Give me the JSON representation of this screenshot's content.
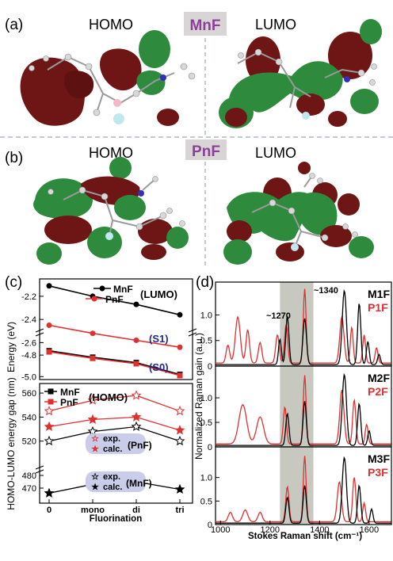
{
  "figure": {
    "panel_a": {
      "label": "(a)",
      "left_title": "HOMO",
      "right_title": "LUMO",
      "molecule": "MnF",
      "molecule_badge_color": "#d9d4d6",
      "molecule_text_color": "#8b3f96"
    },
    "panel_b": {
      "label": "(b)",
      "left_title": "HOMO",
      "right_title": "LUMO",
      "molecule": "PnF",
      "molecule_badge_color": "#d9d4d6",
      "molecule_text_color": "#8b3f96"
    },
    "orbital_colors": {
      "positive": "#2e8b3e",
      "negative": "#6e1515"
    }
  },
  "chart_data": [
    {
      "id": "c",
      "type": "line",
      "label": "(c)",
      "x_categories": [
        "0",
        "mono",
        "di",
        "tri"
      ],
      "xlabel": "Fluorination",
      "upper": {
        "ylabel": "Energy (eV)",
        "ylim": [
          -2.7,
          -2.05
        ],
        "yticks": [
          -2.2,
          -2.4,
          -2.6
        ],
        "break_ticks": [
          -4.8,
          -5.0
        ],
        "state_labels": [
          "(S1)",
          "(S0)"
        ],
        "state_label_color": "#1f2a8a",
        "series": [
          {
            "name": "MnF",
            "tag": "(LUMO)",
            "color": "#000000",
            "marker": "circle",
            "values": [
              -2.11,
              -2.2,
              -2.27,
              -2.36
            ]
          },
          {
            "name": "PnF",
            "color": "#e03030",
            "marker": "circle",
            "values": [
              -2.45,
              -2.52,
              -2.58,
              -2.64
            ]
          },
          {
            "name": "MnF",
            "tag": "(HOMO)",
            "color": "#000000",
            "marker": "square",
            "values": [
              -4.76,
              -4.82,
              -4.87,
              -4.98
            ]
          },
          {
            "name": "PnF",
            "color": "#e03030",
            "marker": "square",
            "values": [
              -4.77,
              -4.83,
              -4.88,
              -4.99
            ]
          }
        ]
      },
      "lower": {
        "ylabel": "HOMO-LUMO energy gap (nm)",
        "ylim": [
          460,
          564
        ],
        "yticks": [
          470,
          480,
          520,
          540,
          560
        ],
        "legend_pnf": {
          "exp": "exp.",
          "calc": "calc.",
          "name": "(PnF)"
        },
        "legend_mnf": {
          "exp": "exp.",
          "calc": "calc.",
          "name": "(MnF)"
        },
        "legend_bg": "#c9cdea",
        "series": [
          {
            "name": "PnF exp.",
            "color": "#e03030",
            "marker": "star-open",
            "values": [
              545,
              554,
              558,
              545
            ]
          },
          {
            "name": "PnF calc.",
            "color": "#e03030",
            "marker": "star-filled",
            "values": [
              532,
              538,
              540,
              529
            ]
          },
          {
            "name": "MnF exp.",
            "color": "#000000",
            "marker": "star-open",
            "values": [
              520,
              528,
              532,
              520
            ]
          },
          {
            "name": "MnF calc.",
            "color": "#000000",
            "marker": "star-filled",
            "values": [
              466,
              473,
              475,
              469
            ]
          }
        ]
      }
    },
    {
      "id": "d",
      "type": "line",
      "label": "(d)",
      "xlabel": "Stokes Raman shift (cm⁻¹)",
      "ylabel": "Normalized Raman gain (a.u.)",
      "xlim": [
        980,
        1690
      ],
      "xticks": [
        1000,
        1200,
        1400,
        1600
      ],
      "yticks": [
        0,
        0.5,
        1.0
      ],
      "highlight_band": [
        1240,
        1375
      ],
      "highlight_color": "#c7c9c0",
      "annotations": [
        "~1270",
        "~1340"
      ],
      "panels": [
        {
          "labels": [
            "M1F",
            "P1F"
          ],
          "mnf_peaks": [
            [
              1240,
              0.5,
              8
            ],
            [
              1270,
              0.95,
              9
            ],
            [
              1340,
              0.9,
              10
            ],
            [
              1500,
              1.45,
              12
            ],
            [
              1560,
              1.2,
              9
            ],
            [
              1595,
              0.45,
              8
            ],
            [
              1640,
              0.2,
              8
            ]
          ],
          "pnf_peaks": [
            [
              1030,
              0.35,
              10
            ],
            [
              1070,
              0.9,
              14
            ],
            [
              1110,
              0.65,
              10
            ],
            [
              1160,
              0.4,
              10
            ],
            [
              1230,
              0.55,
              10
            ],
            [
              1265,
              0.75,
              9
            ],
            [
              1340,
              1.45,
              8
            ],
            [
              1490,
              0.9,
              12
            ],
            [
              1530,
              0.7,
              8
            ],
            [
              1580,
              0.55,
              8
            ],
            [
              1630,
              0.3,
              8
            ]
          ]
        },
        {
          "labels": [
            "M2F",
            "P2F"
          ],
          "mnf_peaks": [
            [
              1270,
              0.65,
              9
            ],
            [
              1340,
              0.9,
              9
            ],
            [
              1500,
              1.45,
              12
            ],
            [
              1560,
              0.85,
              9
            ],
            [
              1600,
              0.3,
              8
            ]
          ],
          "pnf_peaks": [
            [
              1090,
              0.8,
              22
            ],
            [
              1160,
              0.55,
              20
            ],
            [
              1260,
              0.75,
              9
            ],
            [
              1340,
              1.4,
              8
            ],
            [
              1490,
              1.1,
              12
            ],
            [
              1540,
              0.9,
              9
            ],
            [
              1590,
              0.4,
              8
            ]
          ]
        },
        {
          "labels": [
            "M3F",
            "P3F"
          ],
          "mnf_peaks": [
            [
              1270,
              0.55,
              9
            ],
            [
              1340,
              0.8,
              9
            ],
            [
              1500,
              1.4,
              12
            ],
            [
              1560,
              0.8,
              9
            ],
            [
              1610,
              0.3,
              8
            ]
          ],
          "pnf_peaks": [
            [
              1040,
              0.2,
              12
            ],
            [
              1100,
              0.25,
              14
            ],
            [
              1160,
              0.2,
              12
            ],
            [
              1270,
              0.75,
              9
            ],
            [
              1340,
              1.4,
              8
            ],
            [
              1480,
              0.85,
              12
            ],
            [
              1540,
              0.95,
              9
            ],
            [
              1580,
              0.4,
              8
            ]
          ]
        }
      ]
    }
  ]
}
